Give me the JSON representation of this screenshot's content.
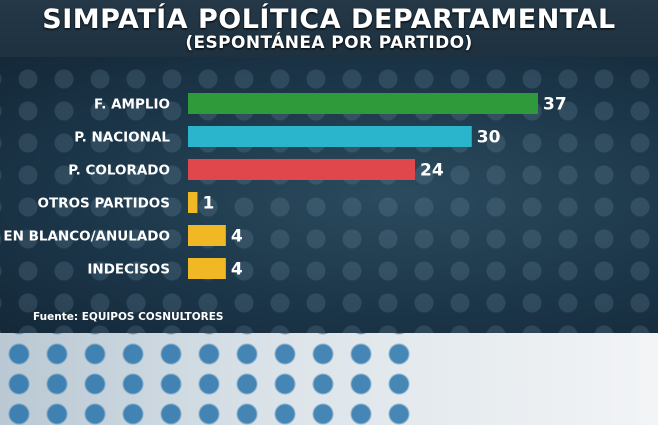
{
  "header": {
    "title": "SIMPATÍA POLÍTICA DEPARTAMENTAL",
    "subtitle": "(ESPONTÁNEA POR PARTIDO)"
  },
  "source": "Fuente: EQUIPOS COSNULTORES",
  "chart_data": {
    "type": "bar",
    "orientation": "horizontal",
    "title": "SIMPATÍA POLÍTICA DEPARTAMENTAL",
    "subtitle": "(ESPONTÁNEA POR PARTIDO)",
    "categories": [
      "F. AMPLIO",
      "P. NACIONAL",
      "P. COLORADO",
      "OTROS PARTIDOS",
      "EN BLANCO/ANULADO",
      "INDECISOS"
    ],
    "values": [
      37,
      30,
      24,
      1,
      4,
      4
    ],
    "colors": [
      "#2e9a3a",
      "#2bb5cc",
      "#e0474d",
      "#f1b826",
      "#f1b826",
      "#f1b826"
    ],
    "data_labels": [
      "37",
      "30",
      "24",
      "1",
      "4",
      "4"
    ],
    "xlim": [
      0,
      37
    ],
    "grid": false,
    "legend": "none"
  }
}
